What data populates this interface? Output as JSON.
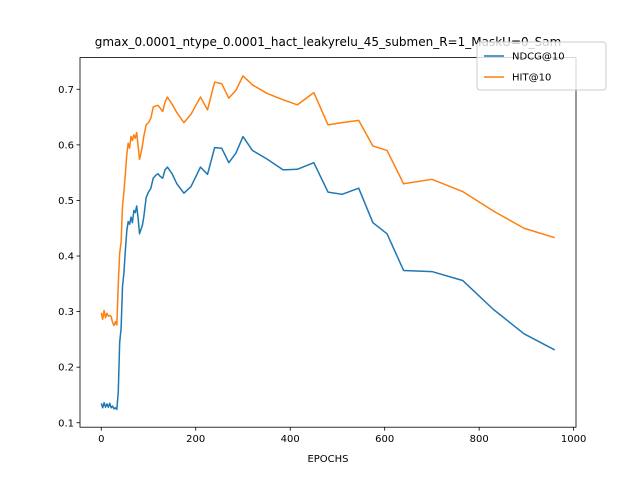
{
  "chart_data": {
    "type": "line",
    "title": "gmax_0.0001_ntype_0.0001_hact_leakyrelu_45_submen_R=1_MaskU=0_Sam",
    "xlabel": "EPOCHS",
    "ylabel": "",
    "xlim": [
      -45,
      1005
    ],
    "ylim": [
      0.092,
      0.757
    ],
    "xticks": [
      0,
      200,
      400,
      600,
      800,
      1000
    ],
    "yticks": [
      0.1,
      0.2,
      0.3,
      0.4,
      0.5,
      0.6,
      0.7
    ],
    "xtick_labels": [
      "0",
      "200",
      "400",
      "600",
      "800",
      "1000"
    ],
    "ytick_labels": [
      "0.1",
      "0.2",
      "0.3",
      "0.4",
      "0.5",
      "0.6",
      "0.7"
    ],
    "grid": false,
    "legend_position": "upper-right",
    "series": [
      {
        "name": "NDCG@10",
        "color": "#1f77b4",
        "x": [
          0,
          3,
          6,
          9,
          12,
          15,
          18,
          21,
          24,
          27,
          30,
          33,
          36,
          39,
          42,
          45,
          48,
          51,
          54,
          57,
          60,
          63,
          66,
          69,
          72,
          75,
          78,
          81,
          84,
          87,
          90,
          95,
          100,
          105,
          110,
          115,
          120,
          125,
          130,
          135,
          140,
          150,
          160,
          175,
          190,
          210,
          225,
          240,
          255,
          270,
          285,
          300,
          320,
          350,
          385,
          415,
          450,
          480,
          510,
          545,
          575,
          605,
          640,
          700,
          765,
          830,
          895,
          960
        ],
        "y": [
          0.135,
          0.127,
          0.136,
          0.128,
          0.134,
          0.128,
          0.135,
          0.127,
          0.13,
          0.125,
          0.127,
          0.124,
          0.155,
          0.245,
          0.27,
          0.345,
          0.37,
          0.41,
          0.445,
          0.462,
          0.457,
          0.47,
          0.46,
          0.482,
          0.478,
          0.49,
          0.468,
          0.44,
          0.448,
          0.455,
          0.47,
          0.505,
          0.515,
          0.522,
          0.54,
          0.545,
          0.548,
          0.543,
          0.54,
          0.555,
          0.56,
          0.548,
          0.53,
          0.513,
          0.525,
          0.56,
          0.547,
          0.595,
          0.594,
          0.568,
          0.585,
          0.615,
          0.59,
          0.575,
          0.555,
          0.556,
          0.568,
          0.515,
          0.511,
          0.522,
          0.46,
          0.44,
          0.374,
          0.372,
          0.356,
          0.304,
          0.26,
          0.231
        ]
      },
      {
        "name": "HIT@10",
        "color": "#ff7f0e",
        "x": [
          0,
          3,
          6,
          9,
          12,
          15,
          18,
          21,
          24,
          27,
          30,
          33,
          36,
          39,
          42,
          45,
          48,
          51,
          54,
          57,
          60,
          63,
          66,
          69,
          72,
          75,
          78,
          81,
          84,
          87,
          90,
          95,
          100,
          105,
          110,
          115,
          120,
          125,
          130,
          135,
          140,
          150,
          160,
          175,
          190,
          210,
          225,
          240,
          255,
          270,
          285,
          300,
          320,
          350,
          385,
          415,
          450,
          480,
          510,
          545,
          575,
          605,
          640,
          700,
          765,
          830,
          895,
          960
        ],
        "y": [
          0.298,
          0.286,
          0.302,
          0.289,
          0.297,
          0.292,
          0.293,
          0.291,
          0.28,
          0.275,
          0.282,
          0.276,
          0.35,
          0.405,
          0.425,
          0.49,
          0.515,
          0.548,
          0.582,
          0.603,
          0.594,
          0.615,
          0.608,
          0.618,
          0.612,
          0.622,
          0.598,
          0.574,
          0.585,
          0.598,
          0.615,
          0.636,
          0.64,
          0.648,
          0.668,
          0.67,
          0.671,
          0.666,
          0.66,
          0.677,
          0.686,
          0.673,
          0.658,
          0.64,
          0.655,
          0.686,
          0.663,
          0.713,
          0.71,
          0.684,
          0.698,
          0.724,
          0.708,
          0.693,
          0.681,
          0.672,
          0.694,
          0.636,
          0.64,
          0.644,
          0.598,
          0.59,
          0.53,
          0.538,
          0.516,
          0.481,
          0.45,
          0.433
        ]
      }
    ]
  }
}
